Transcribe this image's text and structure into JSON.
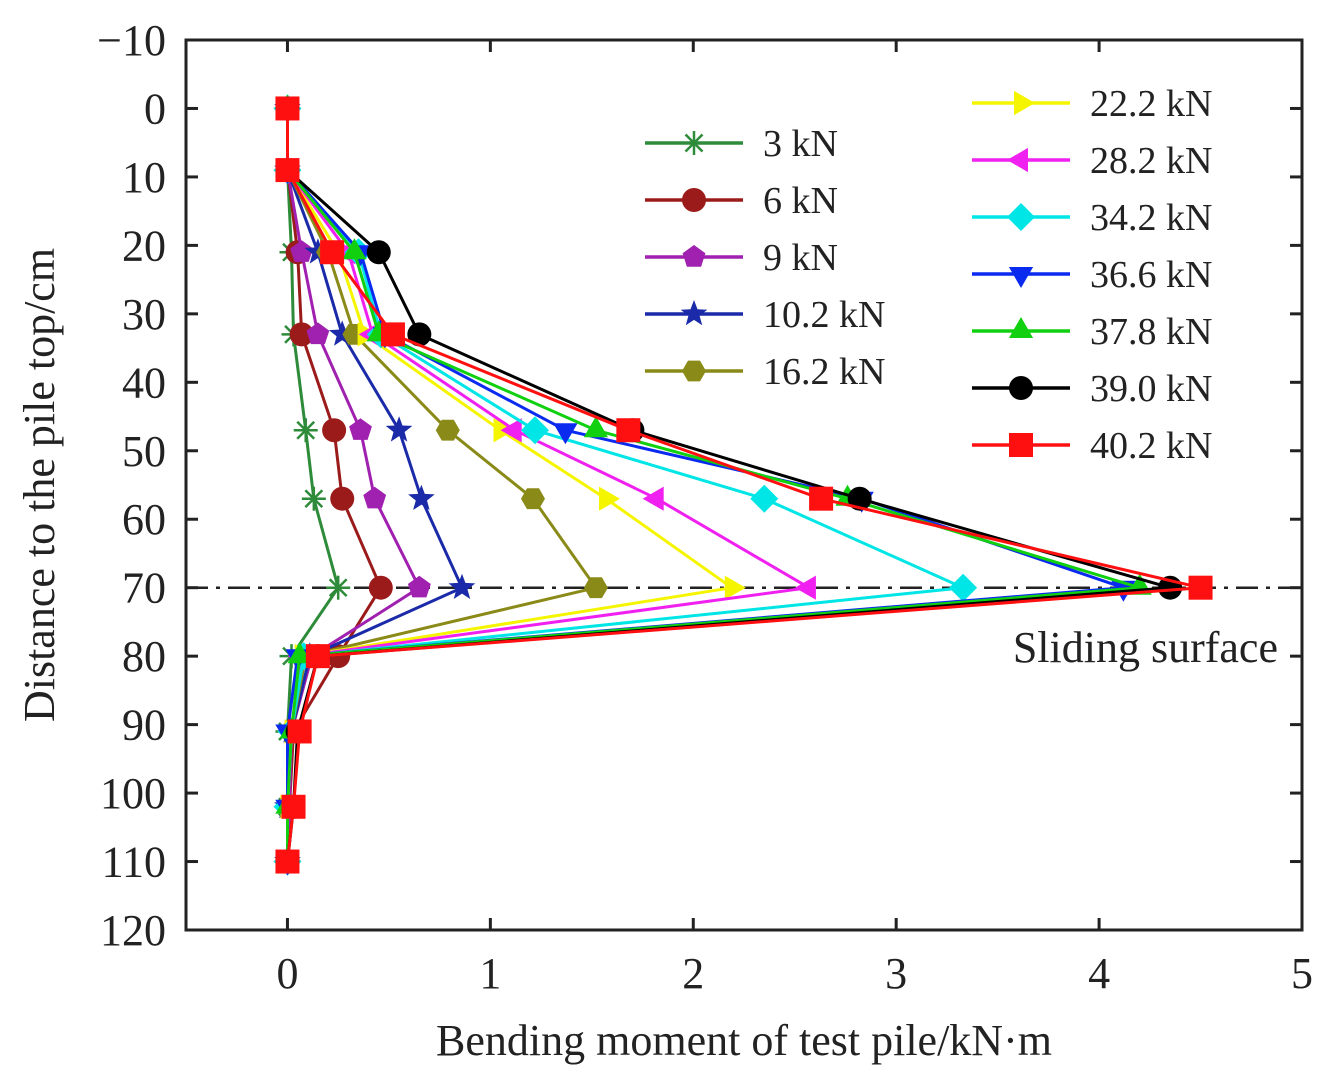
{
  "chart_data": {
    "type": "line",
    "title": "",
    "xlabel": "Bending moment of test pile/kN·m",
    "ylabel": "Distance to the pile top/cm",
    "xlim": [
      -0.5,
      5
    ],
    "ylim": [
      -10,
      120
    ],
    "y_inverted": true,
    "x_ticks": [
      0,
      1,
      2,
      3,
      4,
      5
    ],
    "x_tick_labels": [
      "0",
      "1",
      "2",
      "3",
      "4",
      "5"
    ],
    "y_ticks": [
      -10,
      0,
      10,
      20,
      30,
      40,
      50,
      60,
      70,
      80,
      90,
      100,
      110,
      120
    ],
    "y_tick_labels": [
      "−10",
      "0",
      "10",
      "20",
      "30",
      "40",
      "50",
      "60",
      "70",
      "80",
      "90",
      "100",
      "110",
      "120"
    ],
    "grid": false,
    "y": [
      0,
      9,
      21,
      33,
      47,
      57,
      70,
      80,
      91,
      102,
      110
    ],
    "series": [
      {
        "name": "3 kN",
        "color": "#2e8b3a",
        "marker": "asterisk",
        "values": [
          0,
          0,
          0.02,
          0.03,
          0.09,
          0.13,
          0.25,
          0.02,
          0.0,
          0.0,
          0.0
        ]
      },
      {
        "name": "6 kN",
        "color": "#9b1b1b",
        "marker": "circle",
        "values": [
          0,
          0,
          0.05,
          0.07,
          0.23,
          0.27,
          0.46,
          0.25,
          0.03,
          0.01,
          0.0
        ]
      },
      {
        "name": "9 kN",
        "color": "#a020b0",
        "marker": "pentagon",
        "values": [
          0,
          0,
          0.07,
          0.15,
          0.36,
          0.43,
          0.65,
          0.12,
          0.02,
          0.01,
          0.0
        ]
      },
      {
        "name": "10.2 kN",
        "color": "#1a2aa8",
        "marker": "star",
        "values": [
          0,
          0,
          0.15,
          0.27,
          0.55,
          0.66,
          0.86,
          0.11,
          0.02,
          0.0,
          0.0
        ]
      },
      {
        "name": "16.2 kN",
        "color": "#8a8a18",
        "marker": "hexagon",
        "values": [
          0,
          0,
          0.2,
          0.33,
          0.79,
          1.21,
          1.52,
          0.09,
          0.02,
          0.0,
          0.0
        ]
      },
      {
        "name": "22.2 kN",
        "color": "#f5f500",
        "marker": "triangle-right",
        "values": [
          0,
          0,
          0.25,
          0.38,
          1.05,
          1.57,
          2.19,
          0.07,
          0.02,
          0.0,
          0.0
        ]
      },
      {
        "name": "28.2 kN",
        "color": "#f020f0",
        "marker": "triangle-left",
        "values": [
          0,
          0,
          0.3,
          0.42,
          1.12,
          1.82,
          2.57,
          0.07,
          0.02,
          0.0,
          0.0
        ]
      },
      {
        "name": "34.2 kN",
        "color": "#00e5e5",
        "marker": "diamond",
        "values": [
          0,
          0,
          0.35,
          0.46,
          1.22,
          2.35,
          3.33,
          0.08,
          0.02,
          0.0,
          0.0
        ]
      },
      {
        "name": "36.6 kN",
        "color": "#0a2af0",
        "marker": "triangle-down",
        "values": [
          0,
          0,
          0.36,
          0.48,
          1.37,
          2.83,
          4.12,
          0.05,
          0.0,
          0.0,
          0.0
        ]
      },
      {
        "name": "37.8 kN",
        "color": "#10d010",
        "marker": "triangle-up",
        "values": [
          0,
          0,
          0.33,
          0.45,
          1.52,
          2.76,
          4.2,
          0.06,
          0.02,
          0.0,
          0.0
        ]
      },
      {
        "name": "39.0 kN",
        "color": "#000000",
        "marker": "circle",
        "values": [
          0,
          0,
          0.45,
          0.65,
          1.7,
          2.82,
          4.35,
          0.15,
          0.05,
          0.03,
          0.0
        ]
      },
      {
        "name": "40.2 kN",
        "color": "#ff1010",
        "marker": "square",
        "values": [
          0,
          0,
          0.22,
          0.52,
          1.68,
          2.63,
          4.5,
          0.15,
          0.06,
          0.03,
          0.0
        ]
      }
    ],
    "reference_lines": [
      {
        "axis": "y",
        "value": 70,
        "style": "dash-dot",
        "label": "Sliding surface"
      }
    ],
    "legend": {
      "placement": "top-right",
      "columns": 2
    }
  }
}
